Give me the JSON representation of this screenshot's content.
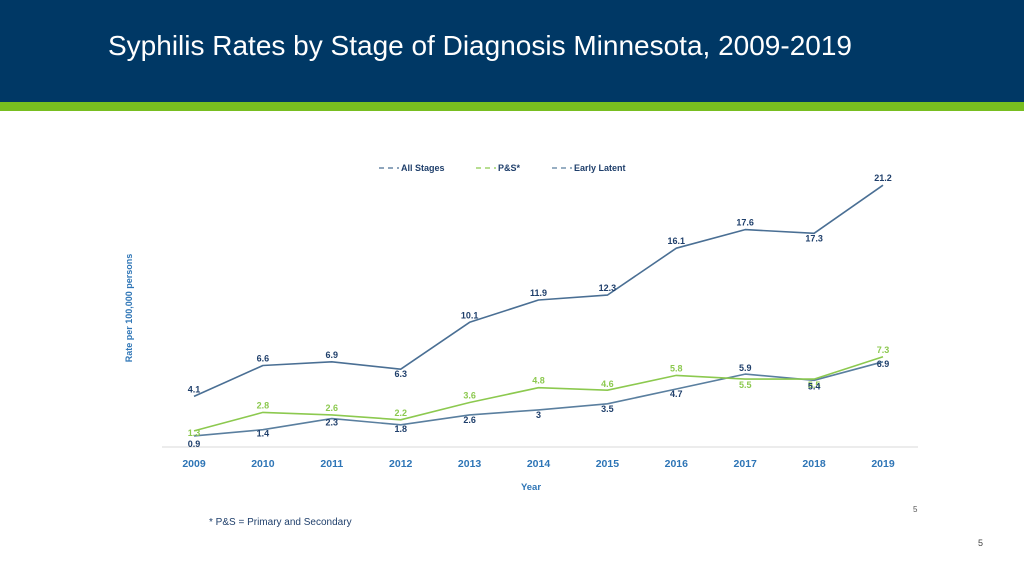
{
  "slide": {
    "title": "Syphilis Rates by Stage of Diagnosis Minnesota, 2009-2019",
    "footnote": "* P&S = Primary and Secondary",
    "source_mark": "5",
    "page_number": "5"
  },
  "colors": {
    "header_bg": "#003865",
    "accent": "#78be20",
    "all_stages": "#4a6f94",
    "ps": "#8cc94f",
    "early_latent": "#5a7f9f",
    "axis_text": "#2e75b6",
    "label_text": "#1f3f6b"
  },
  "chart_data": {
    "type": "line",
    "title": "",
    "xlabel": "Year",
    "ylabel": "Rate per 100,000 persons",
    "categories": [
      "2009",
      "2010",
      "2011",
      "2012",
      "2013",
      "2014",
      "2015",
      "2016",
      "2017",
      "2018",
      "2019"
    ],
    "ylim": [
      0,
      22
    ],
    "grid": false,
    "legend_position": "top",
    "series": [
      {
        "name": "All Stages",
        "color": "#4a6f94",
        "values": [
          4.1,
          6.6,
          6.9,
          6.3,
          10.1,
          11.9,
          12.3,
          16.1,
          17.6,
          17.3,
          21.2
        ]
      },
      {
        "name": "P&S*",
        "color": "#8cc94f",
        "values": [
          1.3,
          2.8,
          2.6,
          2.2,
          3.6,
          4.8,
          4.6,
          5.8,
          5.5,
          5.5,
          7.3
        ]
      },
      {
        "name": "Early Latent",
        "color": "#5a7f9f",
        "values": [
          0.9,
          1.4,
          2.3,
          1.8,
          2.6,
          3,
          3.5,
          4.7,
          5.9,
          5.4,
          6.9
        ]
      }
    ]
  }
}
